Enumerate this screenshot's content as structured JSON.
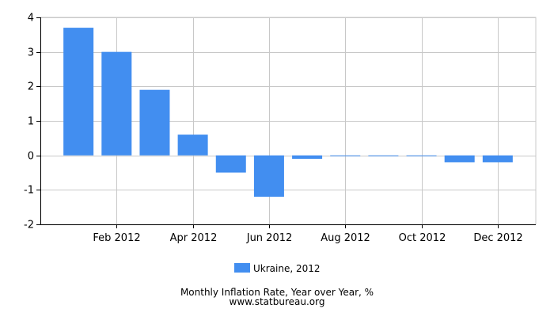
{
  "chart_data": {
    "type": "bar",
    "title": "",
    "xlabel": "",
    "ylabel": "",
    "ylim": [
      -2,
      4
    ],
    "yticks": [
      -2,
      -1,
      0,
      1,
      2,
      3,
      4
    ],
    "grid": true,
    "legend_position": "bottom",
    "categories": [
      "Jan 2012",
      "Feb 2012",
      "Mar 2012",
      "Apr 2012",
      "May 2012",
      "Jun 2012",
      "Jul 2012",
      "Aug 2012",
      "Sep 2012",
      "Oct 2012",
      "Nov 2012",
      "Dec 2012"
    ],
    "xtick_labels": [
      "Feb 2012",
      "Apr 2012",
      "Jun 2012",
      "Aug 2012",
      "Oct 2012",
      "Dec 2012"
    ],
    "series": [
      {
        "name": "Ukraine, 2012",
        "color": "#428ef0",
        "values": [
          3.7,
          3.0,
          1.9,
          0.6,
          -0.5,
          -1.2,
          -0.1,
          -0.02,
          -0.02,
          -0.02,
          -0.2,
          -0.2
        ]
      }
    ]
  },
  "footer": {
    "caption": "Monthly Inflation Rate, Year over Year, %",
    "source": "www.statbureau.org"
  }
}
